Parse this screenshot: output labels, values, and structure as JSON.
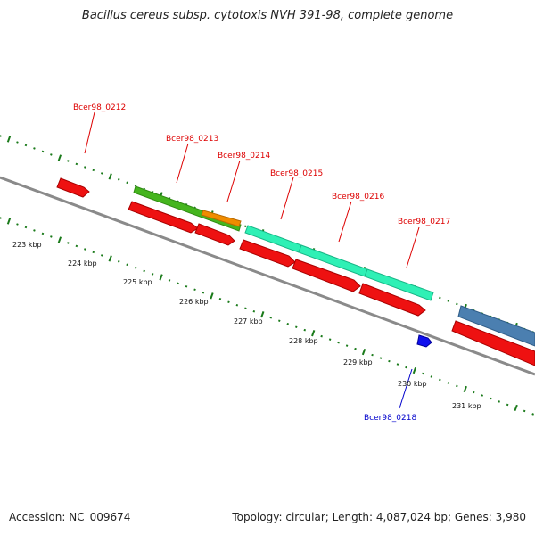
{
  "title": "Bacillus cereus subsp. cytotoxis NVH 391-98, complete genome",
  "footer": {
    "accession": "Accession: NC_009674",
    "info": "Topology: circular; Length: 4,087,024 bp; Genes: 3,980"
  },
  "colors": {
    "backbone": "#8a8a8a",
    "tick": "#1a7a1a",
    "gene": "#ee1111",
    "label_red": "#dd0000",
    "label_blue": "#0000cc",
    "green_bar": "#45b51e",
    "orange_bar": "#f08c00",
    "aqua_bar": "#2ff0b5",
    "steel_bar": "#4b7fb0",
    "blue_marker": "#1010ee"
  },
  "gene_labels": [
    {
      "text": "Bcer98_0212",
      "color": "red"
    },
    {
      "text": "Bcer98_0213",
      "color": "red"
    },
    {
      "text": "Bcer98_0214",
      "color": "red"
    },
    {
      "text": "Bcer98_0215",
      "color": "red"
    },
    {
      "text": "Bcer98_0216",
      "color": "red"
    },
    {
      "text": "Bcer98_0217",
      "color": "red"
    },
    {
      "text": "Bcer98_0218",
      "color": "blue"
    }
  ],
  "kbp_labels": [
    "223 kbp",
    "224 kbp",
    "225 kbp",
    "226 kbp",
    "227 kbp",
    "228 kbp",
    "229 kbp",
    "230 kbp",
    "231 kbp"
  ]
}
